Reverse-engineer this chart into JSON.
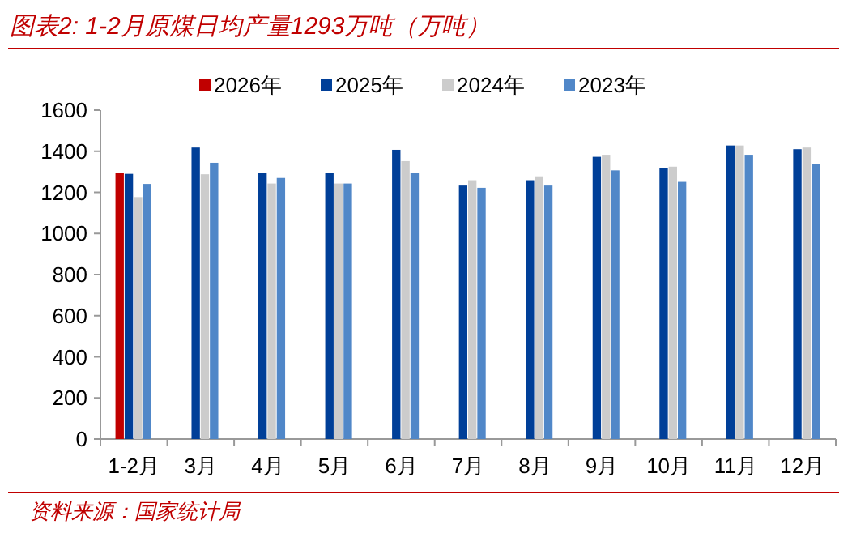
{
  "chart_data": {
    "type": "bar",
    "title": "图表2: 1-2月原煤日均产量1293万吨（万吨）",
    "categories": [
      "1-2月",
      "3月",
      "4月",
      "5月",
      "6月",
      "7月",
      "8月",
      "9月",
      "10月",
      "11月",
      "12月"
    ],
    "series": [
      {
        "name": "2026年",
        "color": "#c00000",
        "values": [
          1293,
          null,
          null,
          null,
          null,
          null,
          null,
          null,
          null,
          null,
          null
        ]
      },
      {
        "name": "2025年",
        "color": "#003f98",
        "values": [
          1290,
          1418,
          1294,
          1294,
          1407,
          1233,
          1259,
          1373,
          1317,
          1428,
          1410
        ]
      },
      {
        "name": "2024年",
        "color": "#cccccc",
        "values": [
          1177,
          1288,
          1243,
          1243,
          1352,
          1259,
          1278,
          1383,
          1325,
          1428,
          1418
        ]
      },
      {
        "name": "2023年",
        "color": "#5087c8",
        "values": [
          1241,
          1344,
          1270,
          1243,
          1294,
          1222,
          1233,
          1307,
          1251,
          1383,
          1336
        ]
      }
    ],
    "ylim": [
      0,
      1600
    ],
    "yticks": [
      0,
      200,
      400,
      600,
      800,
      1000,
      1200,
      1400,
      1600
    ],
    "legend": "top",
    "grid": false,
    "annotations": [
      "资料来源：国家统计局"
    ]
  }
}
